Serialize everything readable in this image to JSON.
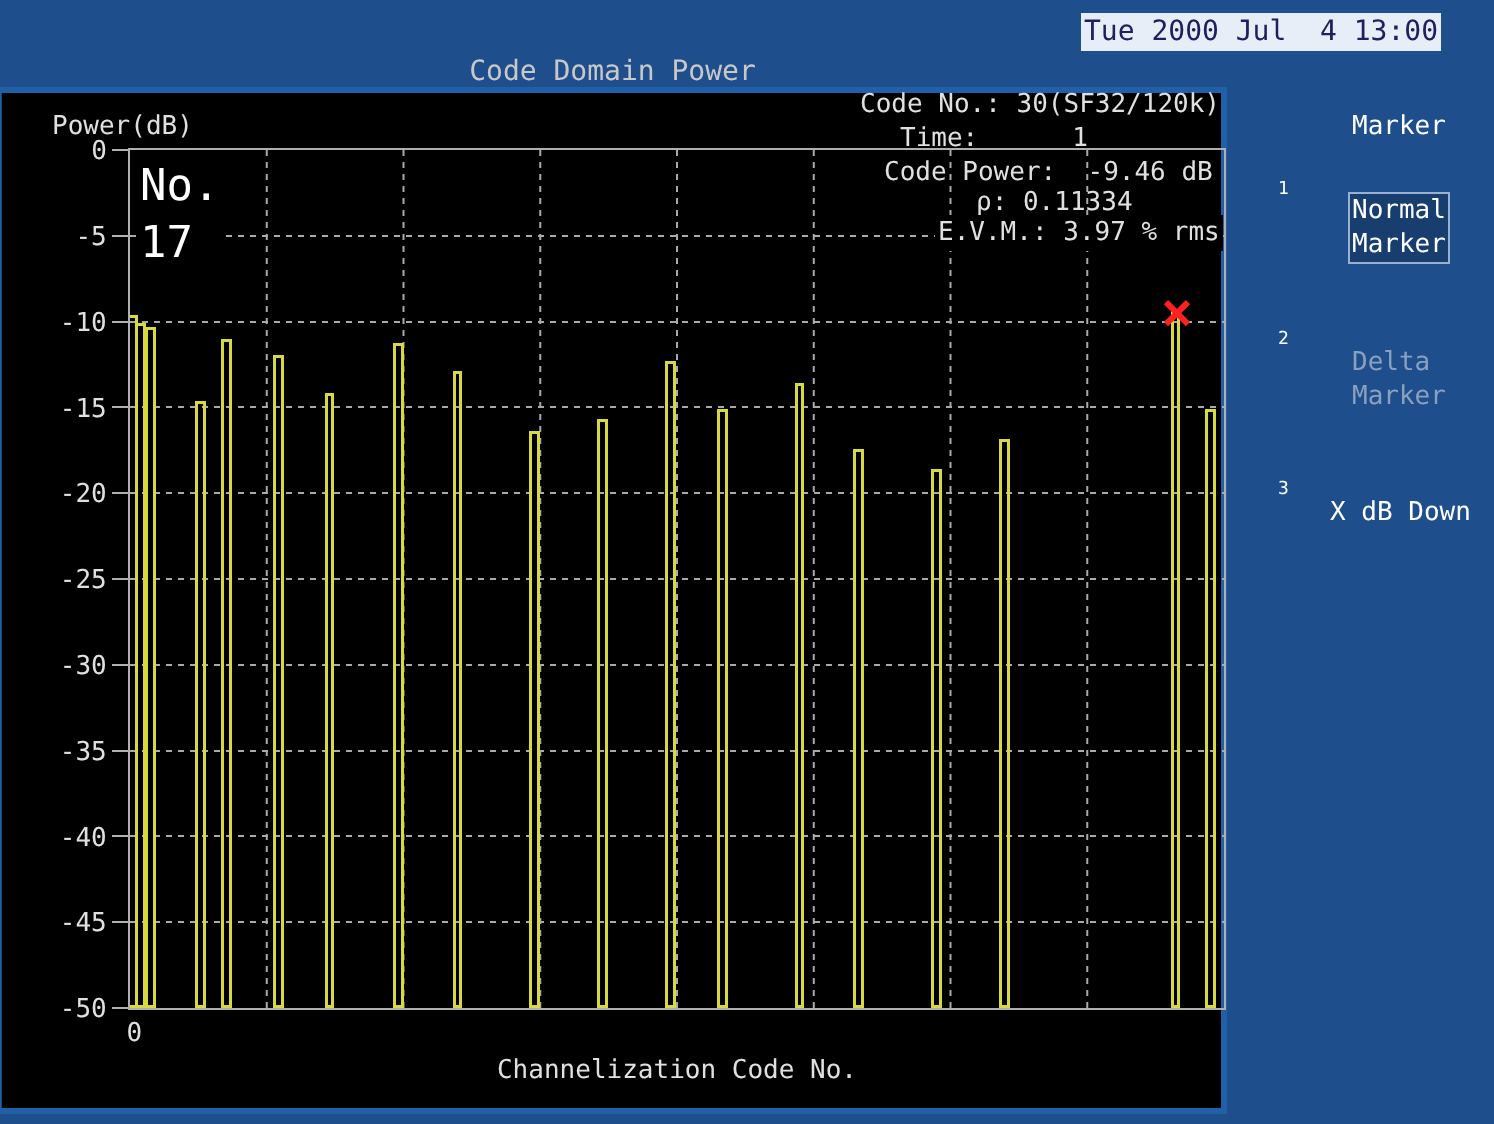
{
  "chart_data": {
    "type": "bar",
    "title": "Code Domain Power",
    "xlabel": "Channelization Code No.",
    "ylabel": "Power(dB)",
    "categories": [
      "0",
      null,
      null,
      null,
      null,
      null,
      null,
      null,
      null,
      null,
      null,
      null,
      null,
      null,
      null,
      null,
      null,
      null,
      null,
      null,
      null,
      null,
      null,
      null,
      null,
      null,
      null,
      null,
      null,
      null,
      null,
      null,
      null,
      null,
      null,
      null,
      null,
      null,
      null,
      null,
      null,
      null,
      null,
      null,
      null,
      null,
      null,
      null,
      null,
      null,
      null,
      null,
      null,
      null,
      null,
      null,
      null,
      null,
      null,
      null,
      null,
      null,
      null,
      null,
      null,
      null,
      null,
      null,
      null,
      null,
      null,
      null,
      null,
      null,
      null,
      null,
      null,
      null,
      null,
      null,
      null,
      null,
      null,
      null,
      null,
      null,
      null,
      null,
      null,
      null,
      null,
      null,
      null,
      null,
      null,
      null,
      null,
      null,
      null,
      null,
      null,
      null,
      null,
      null,
      null,
      null,
      null,
      null,
      null,
      null,
      null,
      null,
      null,
      null,
      null,
      null,
      null,
      null,
      null,
      null,
      null,
      null,
      null,
      null,
      null,
      null,
      null,
      null
    ],
    "series": [
      {
        "color": "#d8d840",
        "values": [
          40.2,
          39.7,
          39.5,
          null,
          null,
          null,
          null,
          null,
          35.2,
          null,
          null,
          38.8,
          null,
          null,
          null,
          null,
          null,
          37.9,
          null,
          null,
          null,
          null,
          null,
          35.7,
          null,
          null,
          null,
          null,
          null,
          null,
          null,
          38.6,
          null,
          null,
          null,
          null,
          null,
          null,
          36.9,
          null,
          null,
          null,
          null,
          null,
          null,
          null,
          null,
          33.5,
          null,
          null,
          null,
          null,
          null,
          null,
          null,
          34.2,
          null,
          null,
          null,
          null,
          null,
          null,
          null,
          37.5,
          null,
          null,
          null,
          null,
          null,
          34.7,
          null,
          null,
          null,
          null,
          null,
          null,
          null,
          null,
          36.3,
          null,
          null,
          null,
          null,
          null,
          null,
          32.4,
          null,
          null,
          null,
          null,
          null,
          null,
          null,
          null,
          31.2,
          null,
          null,
          null,
          null,
          null,
          null,
          null,
          33.0,
          null,
          null,
          null,
          null,
          null,
          null,
          null,
          null,
          null,
          null,
          null,
          null,
          null,
          null,
          null,
          null,
          null,
          null,
          null,
          40.5,
          null,
          null,
          null,
          34.7,
          null
        ],
        "base": [
          -50,
          -50,
          -50,
          null,
          null,
          null,
          null,
          null,
          -50,
          null,
          null,
          -50,
          null,
          null,
          null,
          null,
          null,
          -50,
          null,
          null,
          null,
          null,
          null,
          -50,
          null,
          null,
          null,
          null,
          null,
          null,
          null,
          -50,
          null,
          null,
          null,
          null,
          null,
          null,
          -50,
          null,
          null,
          null,
          null,
          null,
          null,
          null,
          null,
          -50,
          null,
          null,
          null,
          null,
          null,
          null,
          null,
          -50,
          null,
          null,
          null,
          null,
          null,
          null,
          null,
          -50,
          null,
          null,
          null,
          null,
          null,
          -50,
          null,
          null,
          null,
          null,
          null,
          null,
          null,
          null,
          -50,
          null,
          null,
          null,
          null,
          null,
          null,
          -50,
          null,
          null,
          null,
          null,
          null,
          null,
          null,
          null,
          -50,
          null,
          null,
          null,
          null,
          null,
          null,
          null,
          -50,
          null,
          null,
          null,
          null,
          null,
          null,
          null,
          null,
          null,
          null,
          null,
          null,
          null,
          null,
          null,
          null,
          null,
          null,
          null,
          -50,
          null,
          null,
          null,
          -50,
          null
        ]
      },
      {
        "type": "scatter",
        "color": "#ff2020",
        "marker": "cross",
        "values": [
          null,
          null,
          null,
          null,
          null,
          null,
          null,
          null,
          null,
          null,
          null,
          null,
          null,
          null,
          null,
          null,
          null,
          null,
          null,
          null,
          null,
          null,
          null,
          null,
          null,
          null,
          null,
          null,
          null,
          null,
          null,
          null,
          null,
          null,
          null,
          null,
          null,
          null,
          null,
          null,
          null,
          null,
          null,
          null,
          null,
          null,
          null,
          null,
          null,
          null,
          null,
          null,
          null,
          null,
          null,
          null,
          null,
          null,
          null,
          null,
          null,
          null,
          null,
          null,
          null,
          null,
          null,
          null,
          null,
          null,
          null,
          null,
          null,
          null,
          null,
          null,
          null,
          null,
          null,
          null,
          null,
          null,
          null,
          null,
          null,
          null,
          null,
          null,
          null,
          null,
          null,
          null,
          null,
          null,
          null,
          null,
          null,
          null,
          null,
          null,
          null,
          null,
          null,
          null,
          null,
          null,
          null,
          null,
          null,
          null,
          null,
          null,
          null,
          null,
          null,
          null,
          null,
          null,
          null,
          null,
          null,
          null,
          -9.5,
          null,
          null,
          null,
          null,
          null
        ]
      }
    ],
    "ylim": [
      -50,
      0
    ],
    "yticks": [
      -50,
      -45,
      -40,
      -35,
      -30,
      -25,
      -20,
      -15,
      -10,
      -5,
      0
    ],
    "grid": true,
    "annotations": [
      "No.\n17",
      "Code No.: 30(SF32/120k)",
      "Time:      1",
      "Code Power:  -9.46 dB",
      "ρ: 0.11334",
      "E.V.M.: 3.97 % rms",
      "Tue 2000 Jul  4 13:00",
      "Marker",
      "1",
      "Normal\nMarker",
      "2",
      "Delta\nMarker",
      "3",
      "X dB Down"
    ]
  }
}
